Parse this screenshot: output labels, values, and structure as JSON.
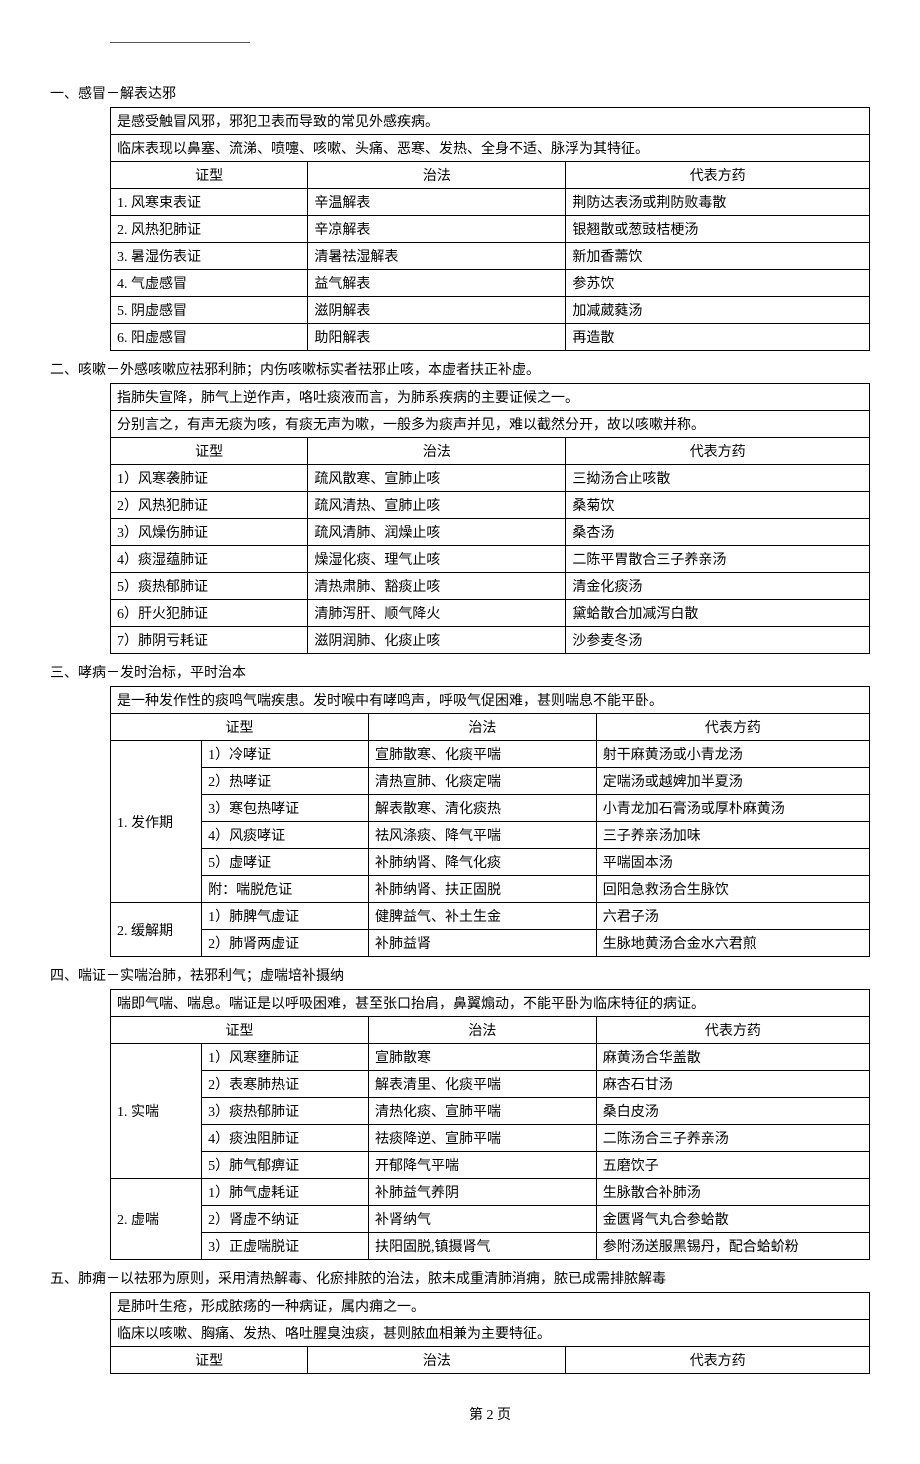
{
  "top_rule": "",
  "sections": {
    "s1": {
      "title": "一、感冒－解表达邪",
      "intro1": "是感受触冒风邪，邪犯卫表而导致的常见外感疾病。",
      "intro2": "临床表现以鼻塞、流涕、喷嚏、咳嗽、头痛、恶寒、发热、全身不适、脉浮为其特征。",
      "headers": {
        "c1": "证型",
        "c2": "治法",
        "c3": "代表方药"
      },
      "rows": [
        {
          "type": "1. 风寒束表证",
          "method": "辛温解表",
          "formula": "荆防达表汤或荆防败毒散"
        },
        {
          "type": "2. 风热犯肺证",
          "method": "辛凉解表",
          "formula": "银翘散或葱豉桔梗汤"
        },
        {
          "type": "3. 暑湿伤表证",
          "method": "清暑祛湿解表",
          "formula": "新加香薷饮"
        },
        {
          "type": "4. 气虚感冒",
          "method": "益气解表",
          "formula": "参苏饮"
        },
        {
          "type": "5. 阴虚感冒",
          "method": "滋阴解表",
          "formula": "加减葳蕤汤"
        },
        {
          "type": "6. 阳虚感冒",
          "method": "助阳解表",
          "formula": "再造散"
        }
      ]
    },
    "s2": {
      "title": "二、咳嗽－外感咳嗽应祛邪利肺；内伤咳嗽标实者祛邪止咳，本虚者扶正补虚。",
      "intro1": "指肺失宣降，肺气上逆作声，咯吐痰液而言，为肺系疾病的主要证候之一。",
      "intro2": "分别言之，有声无痰为咳，有痰无声为嗽，一般多为痰声并见，难以截然分开，故以咳嗽并称。",
      "headers": {
        "c1": "证型",
        "c2": "治法",
        "c3": "代表方药"
      },
      "rows": [
        {
          "type": "1）风寒袭肺证",
          "method": "疏风散寒、宣肺止咳",
          "formula": "三拗汤合止咳散"
        },
        {
          "type": "2）风热犯肺证",
          "method": "疏风清热、宣肺止咳",
          "formula": "桑菊饮"
        },
        {
          "type": "3）风燥伤肺证",
          "method": "疏风清肺、润燥止咳",
          "formula": "桑杏汤"
        },
        {
          "type": "4）痰湿蕴肺证",
          "method": "燥湿化痰、理气止咳",
          "formula": "二陈平胃散合三子养亲汤"
        },
        {
          "type": "5）痰热郁肺证",
          "method": "清热肃肺、豁痰止咳",
          "formula": "清金化痰汤"
        },
        {
          "type": "6）肝火犯肺证",
          "method": "清肺泻肝、顺气降火",
          "formula": "黛蛤散合加减泻白散"
        },
        {
          "type": "7）肺阴亏耗证",
          "method": "滋阴润肺、化痰止咳",
          "formula": "沙参麦冬汤"
        }
      ]
    },
    "s3": {
      "title": "三、哮病－发时治标，平时治本",
      "intro1": "是一种发作性的痰鸣气喘疾患。发时喉中有哮鸣声，呼吸气促困难，甚则喘息不能平卧。",
      "headers": {
        "c1": "证型",
        "c2": "治法",
        "c3": "代表方药"
      },
      "groups": [
        {
          "phase": "1. 发作期",
          "rows": [
            {
              "type": "1）冷哮证",
              "method": "宣肺散寒、化痰平喘",
              "formula": "射干麻黄汤或小青龙汤"
            },
            {
              "type": "2）热哮证",
              "method": "清热宣肺、化痰定喘",
              "formula": "定喘汤或越婢加半夏汤"
            },
            {
              "type": "3）寒包热哮证",
              "method": "解表散寒、清化痰热",
              "formula": "小青龙加石膏汤或厚朴麻黄汤"
            },
            {
              "type": "4）风痰哮证",
              "method": "祛风涤痰、降气平喘",
              "formula": "三子养亲汤加味"
            },
            {
              "type": "5）虚哮证",
              "method": "补肺纳肾、降气化痰",
              "formula": "平喘固本汤"
            },
            {
              "type": "附：喘脱危证",
              "method": "补肺纳肾、扶正固脱",
              "formula": "回阳急救汤合生脉饮"
            }
          ]
        },
        {
          "phase": "2. 缓解期",
          "rows": [
            {
              "type": "1）肺脾气虚证",
              "method": "健脾益气、补土生金",
              "formula": "六君子汤"
            },
            {
              "type": "2）肺肾两虚证",
              "method": "补肺益肾",
              "formula": "生脉地黄汤合金水六君煎"
            }
          ]
        }
      ]
    },
    "s4": {
      "title": "四、喘证－实喘治肺，祛邪利气；虚喘培补摄纳",
      "intro1": "喘即气喘、喘息。喘证是以呼吸困难，甚至张口抬肩，鼻翼煽动，不能平卧为临床特征的病证。",
      "headers": {
        "c1": "证型",
        "c2": "治法",
        "c3": "代表方药"
      },
      "groups": [
        {
          "phase": "1. 实喘",
          "rows": [
            {
              "type": "1）风寒壅肺证",
              "method": "宣肺散寒",
              "formula": "麻黄汤合华盖散"
            },
            {
              "type": "2）表寒肺热证",
              "method": "解表清里、化痰平喘",
              "formula": "麻杏石甘汤"
            },
            {
              "type": "3）痰热郁肺证",
              "method": "清热化痰、宣肺平喘",
              "formula": "桑白皮汤"
            },
            {
              "type": "4）痰浊阻肺证",
              "method": "祛痰降逆、宣肺平喘",
              "formula": "二陈汤合三子养亲汤"
            },
            {
              "type": "5）肺气郁痹证",
              "method": "开郁降气平喘",
              "formula": "五磨饮子"
            }
          ]
        },
        {
          "phase": "2. 虚喘",
          "rows": [
            {
              "type": "1）肺气虚耗证",
              "method": "补肺益气养阴",
              "formula": "生脉散合补肺汤"
            },
            {
              "type": "2）肾虚不纳证",
              "method": "补肾纳气",
              "formula": "金匮肾气丸合参蛤散"
            },
            {
              "type": "3）正虚喘脱证",
              "method": "扶阳固脱,镇摄肾气",
              "formula": "参附汤送服黑锡丹，配合蛤蚧粉"
            }
          ]
        }
      ]
    },
    "s5": {
      "title": "五、肺痈－以祛邪为原则，采用清热解毒、化瘀排脓的治法，脓未成重清肺消痈，脓已成需排脓解毒",
      "intro1": "是肺叶生疮，形成脓疡的一种病证，属内痈之一。",
      "intro2": "临床以咳嗽、胸痛、发热、咯吐腥臭浊痰，甚则脓血相兼为主要特征。",
      "headers": {
        "c1": "证型",
        "c2": "治法",
        "c3": "代表方药"
      }
    }
  },
  "footer": "第 2 页"
}
